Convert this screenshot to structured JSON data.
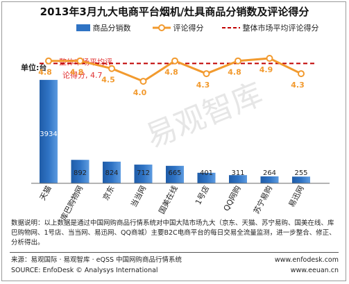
{
  "title": "2013年3月九大电商平台烟机/灶具商品分销数及评论得分",
  "legend": {
    "bar": "商品分销数",
    "line": "评论得分",
    "avg": "整体市场平均评论得分"
  },
  "unit_label": "单位:台",
  "avg_callout": [
    "整体市场平均评",
    "论得分, 4.7"
  ],
  "watermark": "易观智库",
  "colors": {
    "bar": "#2f73c4",
    "line": "#f29a2e",
    "avg_line": "#c00000",
    "score_text": "#f29a2e",
    "callout_text": "#e03030"
  },
  "chart_data": {
    "type": "bar",
    "categories": [
      "天猫",
      "库巴购物网",
      "京东",
      "当当网",
      "国美在线",
      "1号店",
      "QQ网购",
      "苏宁易购",
      "易迅网"
    ],
    "series": [
      {
        "name": "商品分销数",
        "type": "bar",
        "axis": "left",
        "values": [
          3934,
          892,
          824,
          712,
          665,
          401,
          311,
          264,
          255
        ]
      },
      {
        "name": "评论得分",
        "type": "line",
        "axis": "right",
        "values": [
          4.8,
          4.8,
          4.5,
          4.0,
          4.8,
          4.3,
          4.8,
          4.9,
          4.3
        ]
      },
      {
        "name": "整体市场平均评论得分",
        "type": "line",
        "style": "dashed",
        "axis": "right",
        "values": [
          4.7,
          4.7,
          4.7,
          4.7,
          4.7,
          4.7,
          4.7,
          4.7,
          4.7
        ]
      }
    ],
    "ylabel": "单位:台",
    "ylim": [
      0,
      4200
    ],
    "y2lim": [
      0,
      5.5
    ],
    "legend_position": "top"
  },
  "note": "数据说明：以上数据是通过中国网购商品行情系统对中国大陆市场九大（京东、天猫、苏宁易购、国美在线、库巴购物网、1号店、当当网、易迅网、QQ商城）主要B2C电商平台的每日交易全流量监测，进一步整合、修正、分析得出。",
  "footer": {
    "source_cn": "来源：易观国际 · 易观智库 · eQSS 中国网购商品行情系统",
    "source_en": "SOURCE: EnfoDesk © Analysys International",
    "url1": "www.enfodesk.com",
    "url2": "www.eeuan.cn"
  }
}
